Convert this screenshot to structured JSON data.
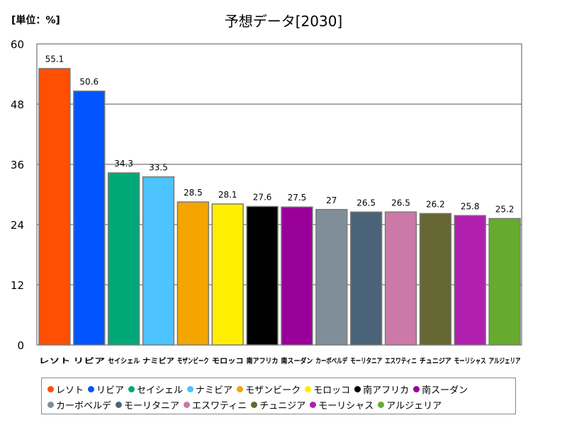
{
  "unit_label": "[単位：%]",
  "chart_data": {
    "type": "bar",
    "title": "予想データ[2030]",
    "categories": [
      "レソト",
      "リビア",
      "セイシェル",
      "ナミビア",
      "モザンビーク",
      "モロッコ",
      "南アフリカ",
      "南スーダン",
      "カーボベルデ",
      "モーリタニア",
      "エスワティニ",
      "チュニジア",
      "モーリシャス",
      "アルジェリア"
    ],
    "values": [
      55.1,
      50.6,
      34.3,
      33.5,
      28.5,
      28.1,
      27.6,
      27.5,
      27,
      26.5,
      26.5,
      26.2,
      25.8,
      25.2
    ],
    "value_labels": [
      "55.1",
      "50.6",
      "34.3",
      "33.5",
      "28.5",
      "28.1",
      "27.6",
      "27.5",
      "27",
      "26.5",
      "26.5",
      "26.2",
      "25.8",
      "25.2"
    ],
    "colors": [
      "#ff4f02",
      "#0055ff",
      "#00a878",
      "#4dc3ff",
      "#f5a500",
      "#ffee00",
      "#000000",
      "#990099",
      "#808e99",
      "#4a6378",
      "#cc79a7",
      "#666633",
      "#b01fad",
      "#66aa2e"
    ],
    "ylim": [
      0,
      60
    ],
    "yticks": [
      "0",
      "12",
      "24",
      "36",
      "48",
      "60"
    ],
    "grid": true,
    "legend_position": "bottom"
  }
}
